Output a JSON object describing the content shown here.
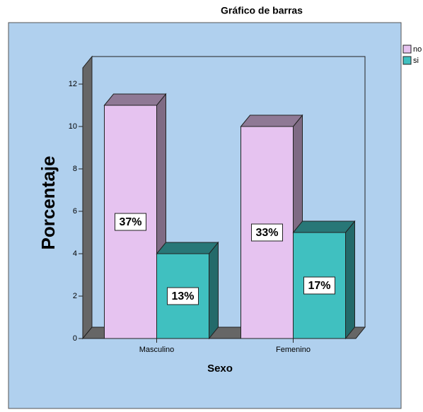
{
  "chart_data": {
    "type": "bar3d",
    "title": "Gráfico de barras",
    "x_label": "Sexo",
    "y_label": "Porcentaje",
    "categories": [
      "Masculino",
      "Femenino"
    ],
    "series": [
      {
        "name": "no",
        "color": "#e6c3f0",
        "values": [
          11,
          10
        ],
        "value_labels": [
          "37%",
          "33%"
        ]
      },
      {
        "name": "si",
        "color": "#40c0c0",
        "values": [
          4,
          5
        ],
        "value_labels": [
          "13%",
          "17%"
        ]
      }
    ],
    "ylim": [
      0,
      12
    ],
    "yticks": [
      0,
      2,
      4,
      6,
      8,
      10,
      12
    ],
    "legend": "right"
  }
}
